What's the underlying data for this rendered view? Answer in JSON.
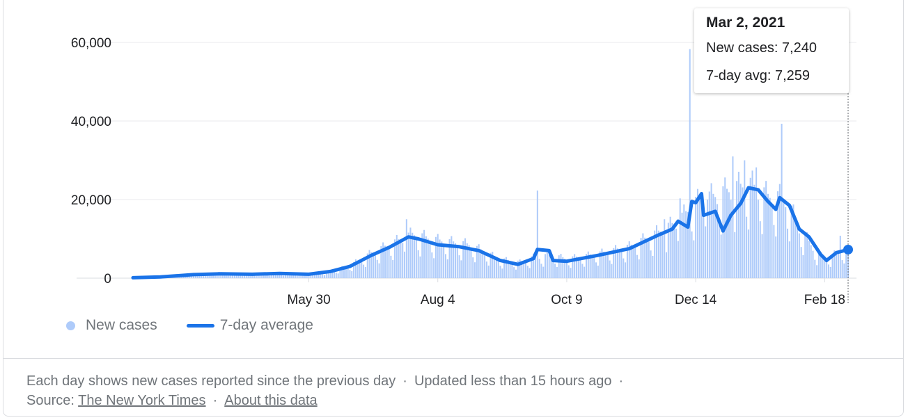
{
  "tooltip": {
    "date": "Mar 2, 2021",
    "new_cases_label": "New cases: 7,240",
    "avg_label": "7-day avg: 7,259"
  },
  "legend": {
    "new_cases": "New cases",
    "avg": "7-day average"
  },
  "footer": {
    "line1_text": "Each day shows new cases reported since the previous day",
    "updated": "Updated less than 15 hours ago",
    "source_label": "Source:",
    "source_link": "The New York Times",
    "about_link": "About this data",
    "separator": "·"
  },
  "colors": {
    "bars": "#aecbfa",
    "line": "#1a73e8",
    "grid": "#e8eaed",
    "text": "#202124",
    "muted": "#70757a"
  },
  "chart_data": {
    "type": "bar",
    "title": "",
    "xlabel": "",
    "ylabel": "",
    "ylim": [
      0,
      60000
    ],
    "yticks": [
      0,
      20000,
      40000,
      60000
    ],
    "ytick_labels": [
      "0",
      "20,000",
      "40,000",
      "60,000"
    ],
    "x_start": "2020-03-01",
    "x_end": "2021-03-02",
    "xticks": [
      "2020-05-30",
      "2020-08-04",
      "2020-10-09",
      "2020-12-14",
      "2021-02-18"
    ],
    "xtick_labels": [
      "May 30",
      "Aug 4",
      "Oct 9",
      "Dec 14",
      "Feb 18"
    ],
    "grid": true,
    "legend_position": "bottom-left",
    "series": [
      {
        "name": "New cases",
        "kind": "bar",
        "anchors": [
          [
            "2020-03-01",
            100
          ],
          [
            "2020-03-25",
            800
          ],
          [
            "2020-04-15",
            1300
          ],
          [
            "2020-05-01",
            1000
          ],
          [
            "2020-05-15",
            1200
          ],
          [
            "2020-05-30",
            1000
          ],
          [
            "2020-06-10",
            1600
          ],
          [
            "2020-06-20",
            3000
          ],
          [
            "2020-07-01",
            6000
          ],
          [
            "2020-07-15",
            9000
          ],
          [
            "2020-07-22",
            10500
          ],
          [
            "2020-08-04",
            9000
          ],
          [
            "2020-08-20",
            8000
          ],
          [
            "2020-09-05",
            4500
          ],
          [
            "2020-09-15",
            3800
          ],
          [
            "2020-09-22",
            5000
          ],
          [
            "2020-10-01",
            5500
          ],
          [
            "2020-10-09",
            4600
          ],
          [
            "2020-10-25",
            5800
          ],
          [
            "2020-11-10",
            7500
          ],
          [
            "2020-11-25",
            11000
          ],
          [
            "2020-12-05",
            13500
          ],
          [
            "2020-12-14",
            18000
          ],
          [
            "2021-01-01",
            21000
          ],
          [
            "2021-01-10",
            22500
          ],
          [
            "2021-01-20",
            19500
          ],
          [
            "2021-01-29",
            19000
          ],
          [
            "2021-02-05",
            12000
          ],
          [
            "2021-02-14",
            6000
          ],
          [
            "2021-02-18",
            4500
          ],
          [
            "2021-03-02",
            7240
          ]
        ],
        "spikes": [
          [
            "2020-07-19",
            15000
          ],
          [
            "2020-09-24",
            22300
          ],
          [
            "2020-12-11",
            58300
          ],
          [
            "2021-01-02",
            31000
          ],
          [
            "2021-01-08",
            30000
          ],
          [
            "2021-01-14",
            28200
          ],
          [
            "2021-01-27",
            39300
          ],
          [
            "2020-12-20",
            20000
          ],
          [
            "2020-12-06",
            20300
          ],
          [
            "2020-11-28",
            15000
          ],
          [
            "2021-02-26",
            10800
          ]
        ]
      },
      {
        "name": "7-day average",
        "kind": "line",
        "points": [
          [
            "2020-03-01",
            100
          ],
          [
            "2020-03-15",
            300
          ],
          [
            "2020-04-01",
            900
          ],
          [
            "2020-04-15",
            1100
          ],
          [
            "2020-05-01",
            1000
          ],
          [
            "2020-05-15",
            1200
          ],
          [
            "2020-05-30",
            1000
          ],
          [
            "2020-06-10",
            1700
          ],
          [
            "2020-06-20",
            3000
          ],
          [
            "2020-07-01",
            5800
          ],
          [
            "2020-07-10",
            7800
          ],
          [
            "2020-07-20",
            10500
          ],
          [
            "2020-07-25",
            10000
          ],
          [
            "2020-08-04",
            8500
          ],
          [
            "2020-08-15",
            8000
          ],
          [
            "2020-08-25",
            7000
          ],
          [
            "2020-09-05",
            4500
          ],
          [
            "2020-09-14",
            3500
          ],
          [
            "2020-09-22",
            5000
          ],
          [
            "2020-09-24",
            7300
          ],
          [
            "2020-09-30",
            7000
          ],
          [
            "2020-10-02",
            4500
          ],
          [
            "2020-10-09",
            4300
          ],
          [
            "2020-10-25",
            5800
          ],
          [
            "2020-11-10",
            7500
          ],
          [
            "2020-11-25",
            11000
          ],
          [
            "2020-12-02",
            12500
          ],
          [
            "2020-12-05",
            14500
          ],
          [
            "2020-12-10",
            13000
          ],
          [
            "2020-12-12",
            19500
          ],
          [
            "2020-12-14",
            19200
          ],
          [
            "2020-12-17",
            21500
          ],
          [
            "2020-12-18",
            16000
          ],
          [
            "2020-12-24",
            17000
          ],
          [
            "2020-12-28",
            12000
          ],
          [
            "2021-01-01",
            16000
          ],
          [
            "2021-01-06",
            19000
          ],
          [
            "2021-01-10",
            23000
          ],
          [
            "2021-01-15",
            22500
          ],
          [
            "2021-01-20",
            19500
          ],
          [
            "2021-01-24",
            17500
          ],
          [
            "2021-01-26",
            20500
          ],
          [
            "2021-01-31",
            18500
          ],
          [
            "2021-02-05",
            12500
          ],
          [
            "2021-02-10",
            10500
          ],
          [
            "2021-02-16",
            6000
          ],
          [
            "2021-02-19",
            4500
          ],
          [
            "2021-02-24",
            6500
          ],
          [
            "2021-03-02",
            7259
          ]
        ]
      }
    ],
    "highlight": {
      "date": "2021-03-02",
      "new_cases": 7240,
      "avg": 7259
    }
  }
}
